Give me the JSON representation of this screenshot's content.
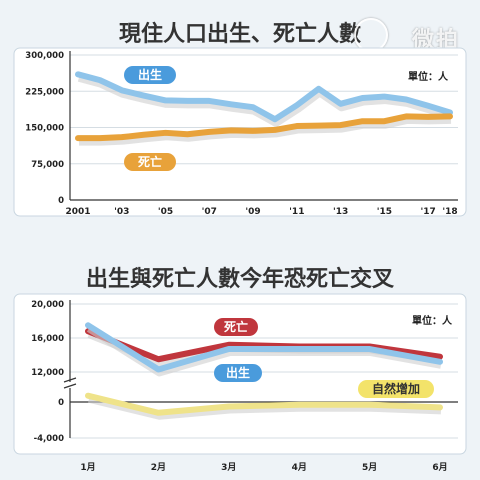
{
  "watermark": "微拍",
  "chart_data": [
    {
      "type": "line",
      "title": "現住人口出生、死亡人數",
      "unit": "單位：人",
      "x": [
        "2001",
        "2002",
        "2003",
        "2004",
        "2005",
        "2006",
        "2007",
        "2008",
        "2009",
        "2010",
        "2011",
        "2012",
        "2013",
        "2014",
        "2015",
        "2016",
        "2017",
        "2018"
      ],
      "xtick_labels": [
        "2001",
        "",
        "'03",
        "",
        "'05",
        "",
        "'07",
        "",
        "'09",
        "",
        "'11",
        "",
        "'13",
        "",
        "'15",
        "",
        "'17",
        "'18"
      ],
      "yticks": [
        0,
        75000,
        150000,
        225000,
        300000
      ],
      "ytick_labels": [
        "0",
        "75,000",
        "150,000",
        "225,000",
        "300,000"
      ],
      "ylim": [
        0,
        300000
      ],
      "series": [
        {
          "name": "出生",
          "color": "#8fc4ea",
          "values": [
            260000,
            248000,
            227000,
            216000,
            206000,
            205000,
            205000,
            198000,
            192000,
            167000,
            196000,
            230000,
            199000,
            211000,
            214000,
            208000,
            195000,
            181000
          ]
        },
        {
          "name": "死亡",
          "color": "#e8a23a",
          "values": [
            128000,
            128000,
            130000,
            135000,
            139000,
            136000,
            141000,
            144000,
            143000,
            145000,
            153000,
            154000,
            155000,
            163000,
            163000,
            173000,
            172000,
            173000
          ]
        }
      ]
    },
    {
      "type": "line",
      "title": "出生與死亡人數今年恐死亡交叉",
      "unit": "單位：人",
      "x": [
        "1月",
        "2月",
        "3月",
        "4月",
        "5月",
        "6月"
      ],
      "yticks": [
        -4000,
        0,
        12000,
        16000,
        20000
      ],
      "ytick_labels": [
        "-4,000",
        "0",
        "12,000",
        "16,000",
        "20,000"
      ],
      "series": [
        {
          "name": "死亡",
          "color": "#c0363d",
          "values": [
            16800,
            13500,
            15200,
            15000,
            15000,
            13800
          ]
        },
        {
          "name": "出生",
          "color": "#8fc4ea",
          "values": [
            17500,
            12300,
            14700,
            14700,
            14700,
            13200
          ]
        },
        {
          "name": "自然增加",
          "color": "#efe38a",
          "values": [
            700,
            -1200,
            -500,
            -300,
            -300,
            -600
          ]
        }
      ]
    }
  ]
}
